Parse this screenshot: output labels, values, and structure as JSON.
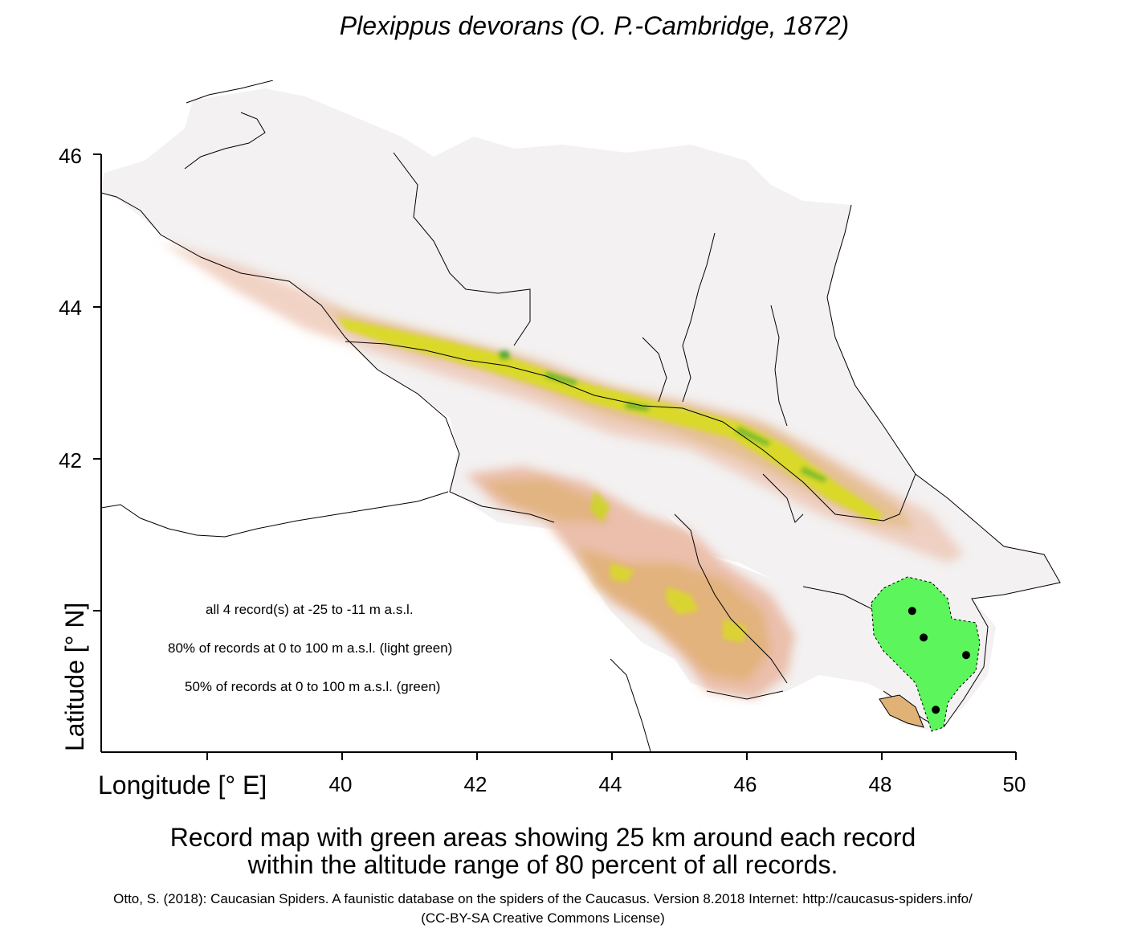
{
  "title": "Plexippus devorans (O. P.-Cambridge, 1872)",
  "axes": {
    "x_label": "Longitude [° E]",
    "y_label": "Latitude [° N]",
    "x_ticks": [
      40,
      42,
      44,
      46,
      48,
      50
    ],
    "y_ticks": [
      42,
      44,
      46
    ],
    "x_range": [
      38.45,
      50.0
    ],
    "y_range": [
      38.25,
      46.1
    ]
  },
  "legend": {
    "line1": "all 4 record(s) at  -25  to  -11  m a.s.l.",
    "line2": "80% of records at 0 to 100  m a.s.l. (light green)",
    "line3": "50% of records at 0 to 100  m a.s.l. (green)"
  },
  "records": [
    {
      "lon": 48.45,
      "lat": 40.0
    },
    {
      "lon": 48.62,
      "lat": 39.65
    },
    {
      "lon": 49.25,
      "lat": 39.42
    },
    {
      "lon": 48.8,
      "lat": 38.7
    }
  ],
  "colors": {
    "record_area": "#5cf55c",
    "record_dot": "#000000",
    "lowland": "#f3f1f1",
    "elevation_low": "#eab9a4",
    "elevation_mid": "#e0b276",
    "elevation_high": "#d8dc1e",
    "elevation_peak": "#3aa82c"
  },
  "caption": {
    "line1": "Record map with green areas showing 25 km around each record",
    "line2": "within the altitude range of 80 percent of all records."
  },
  "citation": {
    "line1": "Otto, S. (2018): Caucasian Spiders. A faunistic database on the spiders of the Caucasus. Version 8.2018 Internet: http://caucasus-spiders.info/",
    "line2": "(CC-BY-SA Creative Commons License)"
  }
}
